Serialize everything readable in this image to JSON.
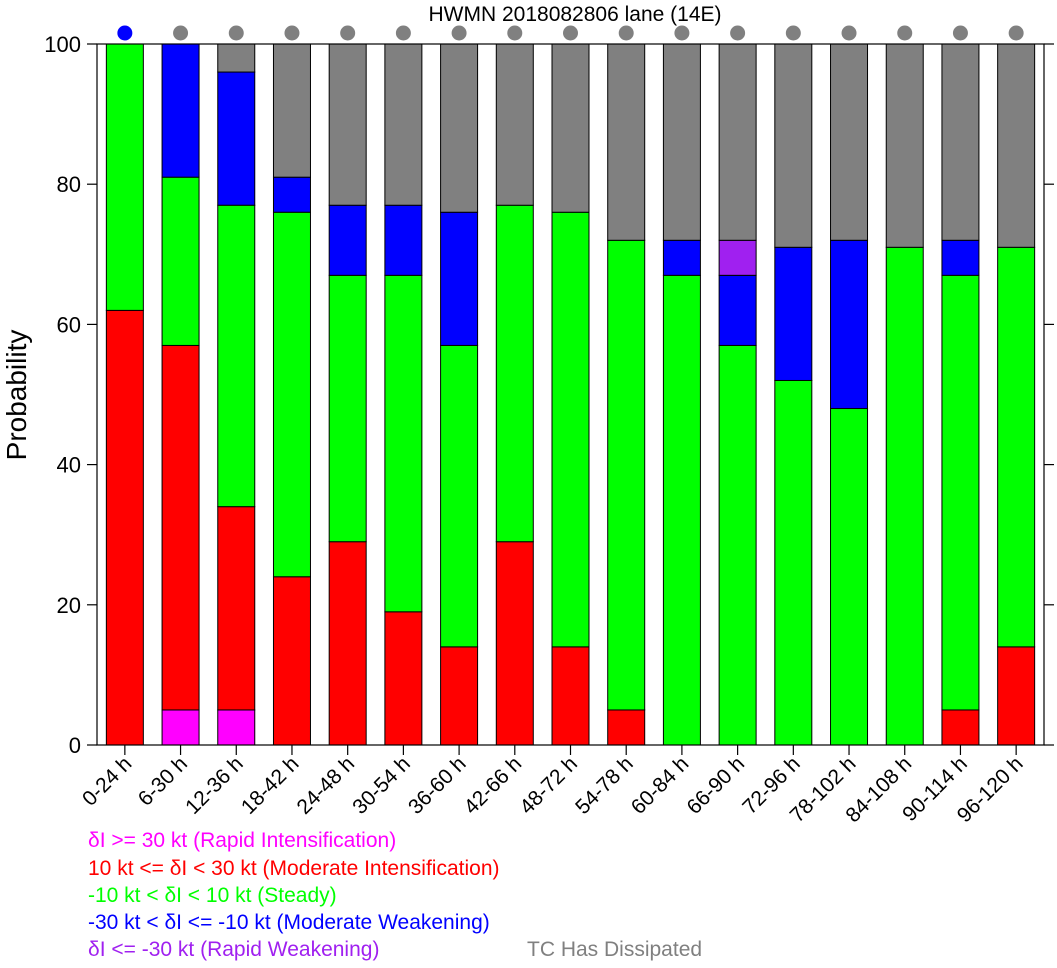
{
  "chart_data": {
    "type": "bar",
    "stacked": true,
    "title": "HWMN 2018082806 lane (14E)",
    "ylabel": "Probability",
    "xlabel": "",
    "ylim": [
      0,
      100
    ],
    "yticks": [
      "0",
      "20",
      "40",
      "60",
      "80",
      "100"
    ],
    "grid": false,
    "categories": [
      "0-24 h",
      "6-30 h",
      "12-36 h",
      "18-42 h",
      "24-48 h",
      "30-54 h",
      "36-60 h",
      "42-66 h",
      "48-72 h",
      "54-78 h",
      "60-84 h",
      "66-90 h",
      "72-96 h",
      "78-102 h",
      "84-108 h",
      "90-114 h",
      "96-120 h"
    ],
    "series": [
      {
        "key": "rapid_intensification",
        "color": "#ff00ff",
        "values": [
          0,
          5,
          5,
          0,
          0,
          0,
          0,
          0,
          0,
          0,
          0,
          0,
          0,
          0,
          0,
          0,
          0
        ]
      },
      {
        "key": "moderate_intensification",
        "color": "#ff0000",
        "values": [
          62,
          52,
          29,
          24,
          29,
          19,
          14,
          29,
          14,
          5,
          0,
          0,
          0,
          0,
          0,
          5,
          14
        ]
      },
      {
        "key": "steady",
        "color": "#00ff00",
        "values": [
          38,
          24,
          43,
          52,
          38,
          48,
          43,
          48,
          62,
          67,
          67,
          57,
          52,
          48,
          71,
          62,
          57
        ]
      },
      {
        "key": "moderate_weakening",
        "color": "#0000ff",
        "values": [
          0,
          19,
          19,
          5,
          10,
          10,
          19,
          0,
          0,
          0,
          5,
          10,
          19,
          24,
          0,
          5,
          0
        ]
      },
      {
        "key": "rapid_weakening",
        "color": "#a020f0",
        "values": [
          0,
          0,
          0,
          0,
          0,
          0,
          0,
          0,
          0,
          0,
          0,
          5,
          0,
          0,
          0,
          0,
          0
        ]
      },
      {
        "key": "dissipated",
        "color": "#808080",
        "values": [
          0,
          0,
          4,
          19,
          23,
          23,
          24,
          23,
          24,
          28,
          28,
          28,
          29,
          28,
          29,
          28,
          29
        ]
      }
    ],
    "markers": {
      "colors": [
        "#0000ff",
        "#808080",
        "#808080",
        "#808080",
        "#808080",
        "#808080",
        "#808080",
        "#808080",
        "#808080",
        "#808080",
        "#808080",
        "#808080",
        "#808080",
        "#808080",
        "#808080",
        "#808080",
        "#808080"
      ]
    },
    "legend": {
      "placement": "bottom-left",
      "entries": [
        {
          "text": "δI >= 30 kt (Rapid Intensification)",
          "color": "#ff00ff"
        },
        {
          "text": "10 kt <= δI < 30 kt (Moderate Intensification)",
          "color": "#ff0000"
        },
        {
          "text": "-10 kt < δI < 10 kt (Steady)",
          "color": "#00ff00"
        },
        {
          "text": "-30 kt < δI <= -10 kt (Moderate Weakening)",
          "color": "#0000ff"
        },
        {
          "text": "δI <= -30 kt (Rapid Weakening)",
          "color": "#a020f0"
        }
      ],
      "extra": {
        "text": "TC Has Dissipated",
        "color": "#808080"
      }
    }
  }
}
